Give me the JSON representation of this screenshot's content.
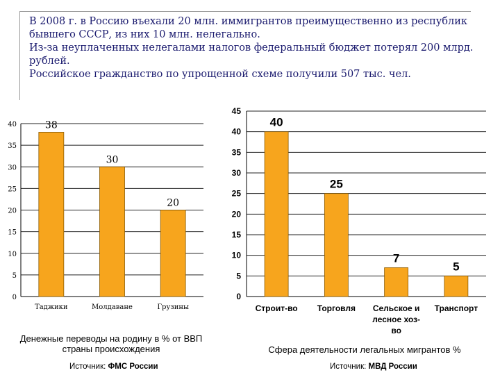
{
  "intro": {
    "lines": [
      "В 2008 г. в Россию въехали 20 млн. иммигрантов преимущественно из республик",
      "бывшего СССР, из них 10 млн. нелегально.",
      "Из-за неуплаченных нелегалами налогов федеральный бюджет потерял 200 млрд.",
      "рублей.",
      "Российское гражданство по упрощенной схеме получили 507 тыс. чел."
    ]
  },
  "colors": {
    "bar_fill": "#F7A51D",
    "bar_stroke": "#8a5a00",
    "grid": "#222222",
    "text": "#1a1a6e"
  },
  "chart_data": [
    {
      "type": "bar",
      "categories": [
        "Таджики",
        "Молдаване",
        "Грузины"
      ],
      "values": [
        38,
        30,
        20
      ],
      "ylim": [
        0,
        40
      ],
      "yticks": [
        0,
        5,
        10,
        15,
        20,
        25,
        30,
        35,
        40
      ],
      "title": "Денежные переводы на родину в % от ВВП страны происхождения",
      "xlabel": "",
      "ylabel": "",
      "grid": true
    },
    {
      "type": "bar",
      "categories": [
        "Строит-во",
        "Торговля",
        "Сельское и лесное хоз-во",
        "Транспорт"
      ],
      "values": [
        40,
        25,
        7,
        5
      ],
      "ylim": [
        0,
        45
      ],
      "yticks": [
        0,
        5,
        10,
        15,
        20,
        25,
        30,
        35,
        40,
        45
      ],
      "title": "Сфера деятельности легальных мигрантов %",
      "xlabel": "",
      "ylabel": "",
      "grid": true
    }
  ],
  "captions": {
    "left_line1": "Денежные переводы на родину в % от ВВП",
    "left_line2": "страны происхождения",
    "right": "Сфера деятельности легальных мигрантов  %"
  },
  "sources": {
    "left_prefix": "Источник: ",
    "left_org": "ФМС России",
    "right_prefix": "Источник: ",
    "right_org": "МВД России"
  }
}
